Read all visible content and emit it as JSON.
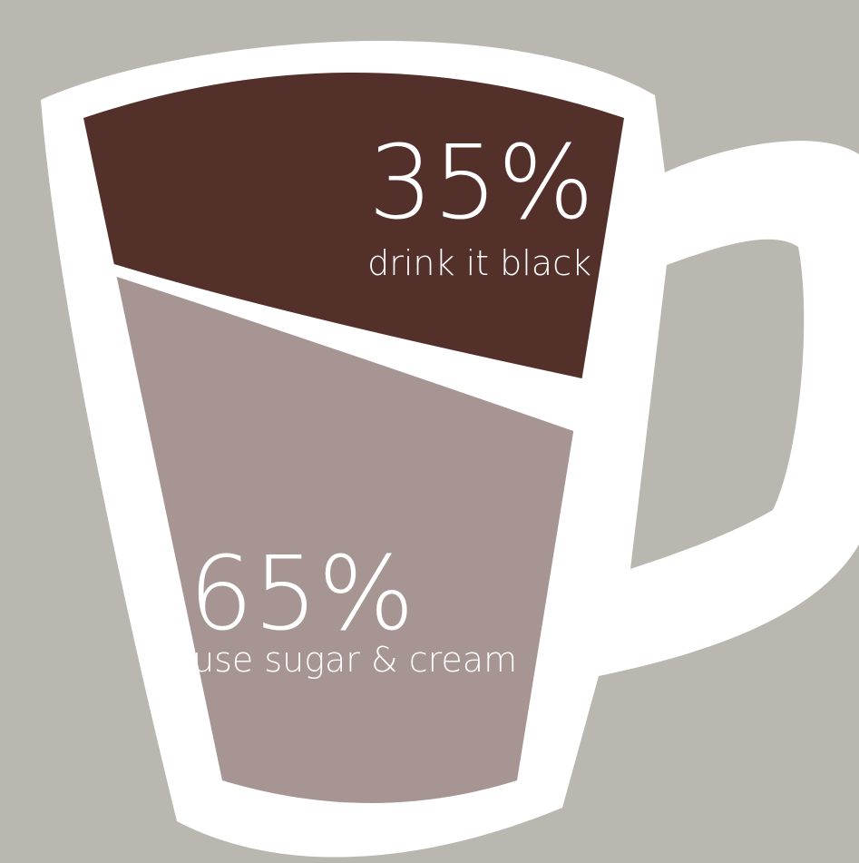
{
  "chart_data": {
    "type": "mug",
    "categories": [
      "drink it black",
      "use sugar & cream"
    ],
    "values": [
      35,
      65
    ],
    "value_labels": [
      "35%",
      "65%"
    ],
    "colors": [
      "#54302b",
      "#a69593"
    ]
  }
}
